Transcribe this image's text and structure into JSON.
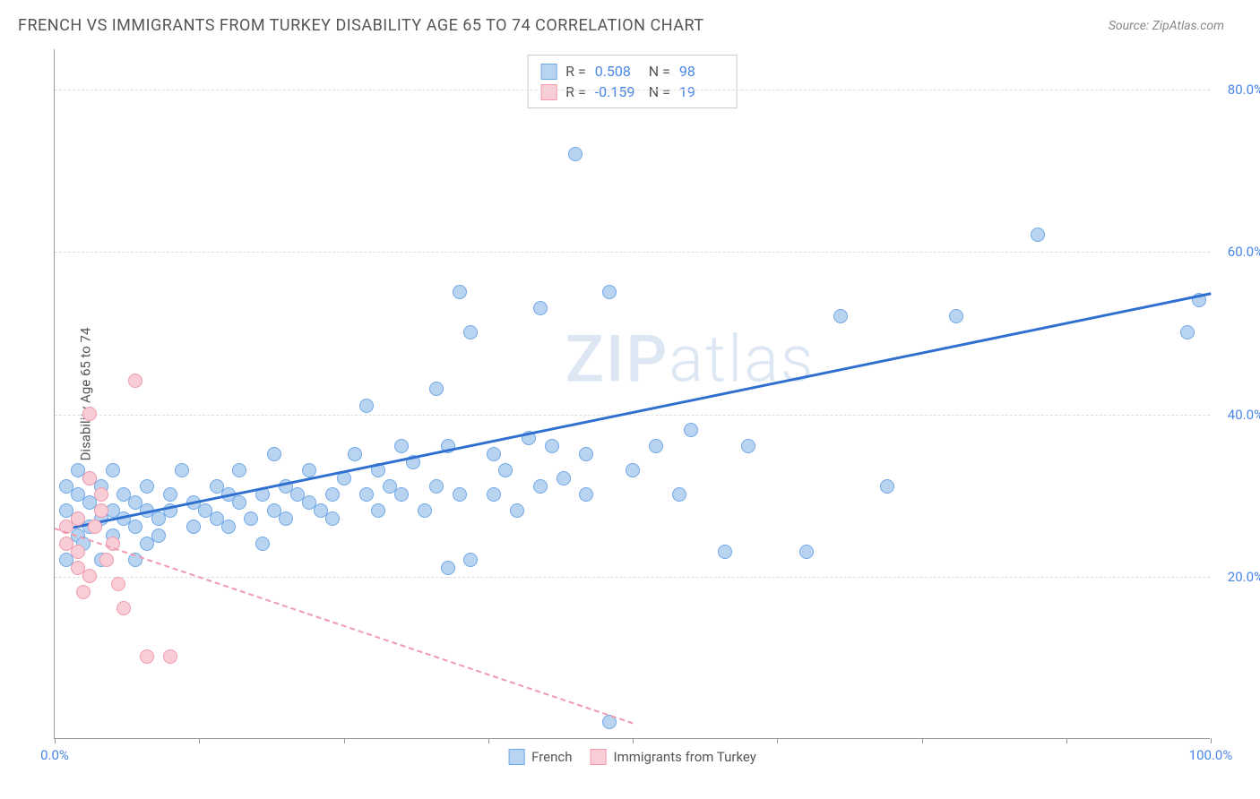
{
  "header": {
    "title": "FRENCH VS IMMIGRANTS FROM TURKEY DISABILITY AGE 65 TO 74 CORRELATION CHART",
    "source": "Source: ZipAtlas.com"
  },
  "chart": {
    "type": "scatter",
    "y_axis_label": "Disability Age 65 to 74",
    "xlim": [
      0,
      100
    ],
    "ylim": [
      0,
      85
    ],
    "x_ticks": [
      0,
      12.5,
      25,
      37.5,
      50,
      62.5,
      75,
      87.5,
      100
    ],
    "x_tick_labels": {
      "0": "0.0%",
      "100": "100.0%"
    },
    "y_grid": [
      20,
      40,
      60,
      80
    ],
    "y_tick_labels": {
      "20": "20.0%",
      "40": "40.0%",
      "60": "60.0%",
      "80": "80.0%"
    },
    "background_color": "#ffffff",
    "grid_color": "#dddddd",
    "axis_color": "#999999",
    "tick_label_color": "#4a86e8",
    "axis_label_color": "#555555",
    "axis_label_fontsize": 15,
    "tick_label_fontsize": 15,
    "point_radius": 8,
    "watermark": "ZIPatlas",
    "series": [
      {
        "name": "French",
        "fill_color": "#b9d4f1",
        "stroke_color": "#6fa8e8",
        "line_color": "#2f6fd0",
        "line_dashed": false,
        "regression": {
          "x1": 1,
          "y1": 26,
          "x2": 100,
          "y2": 55
        },
        "points": [
          [
            1,
            28
          ],
          [
            1,
            31
          ],
          [
            2,
            25
          ],
          [
            2,
            27
          ],
          [
            2,
            30
          ],
          [
            2,
            33
          ],
          [
            2.5,
            24
          ],
          [
            3,
            26
          ],
          [
            3,
            29
          ],
          [
            3,
            32
          ],
          [
            4,
            27
          ],
          [
            4,
            31
          ],
          [
            5,
            25
          ],
          [
            5,
            28
          ],
          [
            5,
            33
          ],
          [
            6,
            27
          ],
          [
            6,
            30
          ],
          [
            7,
            26
          ],
          [
            7,
            29
          ],
          [
            8,
            24
          ],
          [
            8,
            28
          ],
          [
            8,
            31
          ],
          [
            9,
            27
          ],
          [
            9,
            25
          ],
          [
            10,
            30
          ],
          [
            10,
            28
          ],
          [
            11,
            33
          ],
          [
            12,
            26
          ],
          [
            12,
            29
          ],
          [
            13,
            28
          ],
          [
            14,
            27
          ],
          [
            14,
            31
          ],
          [
            15,
            30
          ],
          [
            15,
            26
          ],
          [
            16,
            29
          ],
          [
            16,
            33
          ],
          [
            17,
            27
          ],
          [
            18,
            24
          ],
          [
            18,
            30
          ],
          [
            19,
            28
          ],
          [
            19,
            35
          ],
          [
            20,
            31
          ],
          [
            20,
            27
          ],
          [
            21,
            30
          ],
          [
            22,
            29
          ],
          [
            22,
            33
          ],
          [
            23,
            28
          ],
          [
            24,
            30
          ],
          [
            24,
            27
          ],
          [
            25,
            32
          ],
          [
            26,
            35
          ],
          [
            27,
            30
          ],
          [
            27,
            41
          ],
          [
            28,
            28
          ],
          [
            28,
            33
          ],
          [
            29,
            31
          ],
          [
            30,
            36
          ],
          [
            30,
            30
          ],
          [
            31,
            34
          ],
          [
            32,
            28
          ],
          [
            33,
            43
          ],
          [
            33,
            31
          ],
          [
            34,
            36
          ],
          [
            35,
            30
          ],
          [
            35,
            55
          ],
          [
            36,
            22
          ],
          [
            36,
            50
          ],
          [
            38,
            35
          ],
          [
            38,
            30
          ],
          [
            39,
            33
          ],
          [
            40,
            28
          ],
          [
            41,
            37
          ],
          [
            42,
            31
          ],
          [
            42,
            53
          ],
          [
            43,
            36
          ],
          [
            44,
            32
          ],
          [
            45,
            72
          ],
          [
            46,
            30
          ],
          [
            46,
            35
          ],
          [
            48,
            55
          ],
          [
            48,
            2
          ],
          [
            50,
            33
          ],
          [
            52,
            36
          ],
          [
            54,
            30
          ],
          [
            55,
            38
          ],
          [
            58,
            23
          ],
          [
            60,
            36
          ],
          [
            65,
            23
          ],
          [
            68,
            52
          ],
          [
            72,
            31
          ],
          [
            78,
            52
          ],
          [
            85,
            62
          ],
          [
            98,
            50
          ],
          [
            99,
            54
          ],
          [
            7,
            22
          ],
          [
            4,
            22
          ],
          [
            1,
            22
          ],
          [
            34,
            21
          ]
        ]
      },
      {
        "name": "Immigrants from Turkey",
        "fill_color": "#f8cdd6",
        "stroke_color": "#ef9ab0",
        "line_color": "#ef9ab0",
        "line_dashed": true,
        "regression": {
          "x1": 0,
          "y1": 26,
          "x2": 50,
          "y2": 2
        },
        "points": [
          [
            1,
            24
          ],
          [
            1,
            26
          ],
          [
            2,
            21
          ],
          [
            2,
            23
          ],
          [
            2,
            27
          ],
          [
            2.5,
            18
          ],
          [
            3,
            20
          ],
          [
            3,
            40
          ],
          [
            3,
            32
          ],
          [
            3.5,
            26
          ],
          [
            4,
            28
          ],
          [
            4,
            30
          ],
          [
            4.5,
            22
          ],
          [
            5,
            24
          ],
          [
            5.5,
            19
          ],
          [
            6,
            16
          ],
          [
            7,
            44
          ],
          [
            8,
            10
          ],
          [
            10,
            10
          ]
        ]
      }
    ],
    "stats_box": {
      "rows": [
        {
          "swatch_fill": "#b9d4f1",
          "swatch_stroke": "#6fa8e8",
          "r_label": "R =",
          "r_val": "0.508",
          "n_label": "N =",
          "n_val": "98"
        },
        {
          "swatch_fill": "#f8cdd6",
          "swatch_stroke": "#ef9ab0",
          "r_label": "R =",
          "r_val": "-0.159",
          "n_label": "N =",
          "n_val": "19"
        }
      ]
    },
    "legend": [
      {
        "swatch_fill": "#b9d4f1",
        "swatch_stroke": "#6fa8e8",
        "label": "French"
      },
      {
        "swatch_fill": "#f8cdd6",
        "swatch_stroke": "#ef9ab0",
        "label": "Immigrants from Turkey"
      }
    ]
  }
}
